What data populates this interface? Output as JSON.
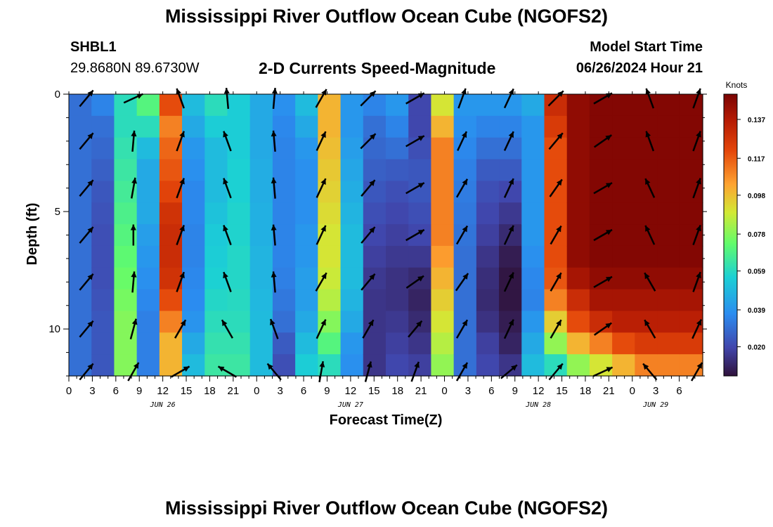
{
  "header": {
    "title": "Mississippi River Outflow Ocean Cube (NGOFS2)",
    "station_id": "SHBL1",
    "station_coords": "29.8680N  89.6730W",
    "plot_subtitle": "2-D Currents Speed-Magnitude",
    "model_label": "Model Start Time",
    "model_time": "06/26/2024 Hour 21"
  },
  "footer": {
    "title": "Mississippi River Outflow Ocean Cube (NGOFS2)"
  },
  "chart_data": {
    "type": "heatmap",
    "title": "2-D Currents Speed-Magnitude",
    "xlabel": "Forecast Time(Z)",
    "ylabel": "Depth (ft)",
    "xlim": [
      0,
      81
    ],
    "ylim": [
      12,
      0
    ],
    "x_tick_labels": [
      "0",
      "3",
      "6",
      "9",
      "12",
      "15",
      "18",
      "21",
      "0",
      "3",
      "6",
      "9",
      "12",
      "15",
      "18",
      "21",
      "0",
      "3",
      "6",
      "9",
      "12",
      "15",
      "18",
      "21",
      "0",
      "3",
      "6"
    ],
    "y_tick_labels": [
      "0",
      "5",
      "10"
    ],
    "date_labels": [
      {
        "hour": 12,
        "label": "JUN 26"
      },
      {
        "hour": 36,
        "label": "JUN 27"
      },
      {
        "hour": 60,
        "label": "JUN 28"
      },
      {
        "hour": 75,
        "label": "JUN 29"
      }
    ],
    "colorbar": {
      "unit": "Knots",
      "min": 0.005,
      "max": 0.15,
      "tick_labels": [
        "0.137",
        "0.117",
        "0.098",
        "0.078",
        "0.059",
        "0.039",
        "0.020"
      ]
    },
    "depths": [
      0,
      1,
      2,
      3,
      4,
      5,
      6,
      7,
      8,
      9,
      10,
      11,
      12
    ],
    "hours": [
      0,
      3,
      6,
      9,
      12,
      15,
      18,
      21,
      24,
      27,
      30,
      33,
      36,
      39,
      42,
      45,
      48,
      51,
      54,
      57,
      60,
      63,
      66,
      69,
      72,
      75,
      78,
      81
    ],
    "speed_grid": [
      [
        0.03,
        0.03,
        0.03,
        0.03,
        0.03,
        0.03,
        0.03,
        0.03,
        0.03,
        0.03,
        0.03,
        0.03,
        0.03
      ],
      [
        0.035,
        0.03,
        0.028,
        0.026,
        0.024,
        0.023,
        0.022,
        0.022,
        0.022,
        0.023,
        0.024,
        0.024,
        0.024
      ],
      [
        0.06,
        0.06,
        0.062,
        0.064,
        0.066,
        0.068,
        0.07,
        0.072,
        0.074,
        0.076,
        0.078,
        0.078,
        0.078
      ],
      [
        0.07,
        0.06,
        0.05,
        0.045,
        0.045,
        0.045,
        0.042,
        0.04,
        0.038,
        0.036,
        0.034,
        0.034,
        0.034
      ],
      [
        0.12,
        0.11,
        0.115,
        0.118,
        0.122,
        0.128,
        0.13,
        0.13,
        0.128,
        0.12,
        0.11,
        0.1,
        0.1
      ],
      [
        0.05,
        0.045,
        0.04,
        0.038,
        0.036,
        0.036,
        0.035,
        0.035,
        0.036,
        0.037,
        0.039,
        0.045,
        0.05
      ],
      [
        0.06,
        0.055,
        0.05,
        0.05,
        0.05,
        0.052,
        0.054,
        0.055,
        0.056,
        0.058,
        0.06,
        0.062,
        0.064
      ],
      [
        0.055,
        0.055,
        0.055,
        0.056,
        0.056,
        0.057,
        0.057,
        0.058,
        0.058,
        0.059,
        0.06,
        0.062,
        0.064
      ],
      [
        0.045,
        0.045,
        0.045,
        0.046,
        0.046,
        0.047,
        0.047,
        0.048,
        0.048,
        0.049,
        0.05,
        0.05,
        0.05
      ],
      [
        0.038,
        0.036,
        0.035,
        0.035,
        0.035,
        0.035,
        0.035,
        0.035,
        0.034,
        0.032,
        0.03,
        0.025,
        0.022
      ],
      [
        0.05,
        0.045,
        0.04,
        0.038,
        0.038,
        0.038,
        0.04,
        0.04,
        0.042,
        0.042,
        0.045,
        0.05,
        0.055
      ],
      [
        0.1,
        0.1,
        0.098,
        0.096,
        0.094,
        0.092,
        0.09,
        0.09,
        0.088,
        0.085,
        0.078,
        0.07,
        0.06
      ],
      [
        0.04,
        0.04,
        0.042,
        0.044,
        0.046,
        0.048,
        0.05,
        0.05,
        0.05,
        0.048,
        0.045,
        0.04,
        0.038
      ],
      [
        0.035,
        0.03,
        0.028,
        0.026,
        0.024,
        0.022,
        0.02,
        0.018,
        0.016,
        0.015,
        0.015,
        0.015,
        0.015
      ],
      [
        0.04,
        0.035,
        0.03,
        0.025,
        0.022,
        0.02,
        0.018,
        0.016,
        0.014,
        0.014,
        0.016,
        0.018,
        0.02
      ],
      [
        0.02,
        0.02,
        0.022,
        0.024,
        0.024,
        0.022,
        0.02,
        0.016,
        0.012,
        0.01,
        0.012,
        0.015,
        0.018
      ],
      [
        0.09,
        0.1,
        0.11,
        0.11,
        0.11,
        0.11,
        0.11,
        0.105,
        0.1,
        0.095,
        0.09,
        0.085,
        0.08
      ],
      [
        0.04,
        0.038,
        0.036,
        0.034,
        0.033,
        0.032,
        0.031,
        0.03,
        0.03,
        0.03,
        0.03,
        0.03,
        0.03
      ],
      [
        0.04,
        0.035,
        0.03,
        0.025,
        0.022,
        0.02,
        0.018,
        0.015,
        0.013,
        0.012,
        0.014,
        0.018,
        0.02
      ],
      [
        0.04,
        0.035,
        0.03,
        0.025,
        0.02,
        0.016,
        0.012,
        0.008,
        0.006,
        0.006,
        0.008,
        0.01,
        0.015
      ],
      [
        0.045,
        0.04,
        0.04,
        0.04,
        0.04,
        0.04,
        0.04,
        0.038,
        0.036,
        0.035,
        0.04,
        0.045,
        0.05
      ],
      [
        0.13,
        0.125,
        0.12,
        0.12,
        0.12,
        0.12,
        0.12,
        0.12,
        0.118,
        0.11,
        0.095,
        0.08,
        0.06
      ],
      [
        0.145,
        0.145,
        0.145,
        0.145,
        0.145,
        0.145,
        0.145,
        0.145,
        0.14,
        0.13,
        0.12,
        0.1,
        0.08
      ],
      [
        0.148,
        0.148,
        0.148,
        0.148,
        0.148,
        0.148,
        0.148,
        0.148,
        0.145,
        0.14,
        0.13,
        0.11,
        0.09
      ],
      [
        0.148,
        0.148,
        0.148,
        0.148,
        0.148,
        0.148,
        0.148,
        0.148,
        0.145,
        0.14,
        0.135,
        0.12,
        0.1
      ],
      [
        0.148,
        0.148,
        0.148,
        0.148,
        0.148,
        0.148,
        0.148,
        0.148,
        0.145,
        0.14,
        0.135,
        0.125,
        0.11
      ],
      [
        0.148,
        0.148,
        0.148,
        0.148,
        0.148,
        0.148,
        0.148,
        0.148,
        0.145,
        0.14,
        0.135,
        0.125,
        0.11
      ],
      [
        0.148,
        0.148,
        0.148,
        0.148,
        0.148,
        0.148,
        0.148,
        0.148,
        0.145,
        0.14,
        0.135,
        0.125,
        0.11
      ]
    ],
    "arrow_depths": [
      0,
      2,
      4,
      6,
      8,
      10,
      12
    ],
    "arrow_hours": [
      0,
      6,
      12,
      18,
      24,
      30,
      36,
      42,
      48,
      54,
      60,
      66,
      72,
      78
    ],
    "arrow_directions_deg": [
      [
        40,
        65,
        340,
        355,
        5,
        30,
        45,
        60,
        20,
        25,
        45,
        60,
        340,
        20
      ],
      [
        40,
        5,
        20,
        340,
        355,
        25,
        45,
        60,
        25,
        25,
        40,
        55,
        340,
        20
      ],
      [
        40,
        10,
        20,
        340,
        355,
        25,
        40,
        60,
        30,
        25,
        35,
        60,
        335,
        20
      ],
      [
        40,
        0,
        20,
        340,
        355,
        25,
        40,
        60,
        30,
        25,
        30,
        60,
        335,
        20
      ],
      [
        40,
        5,
        20,
        340,
        355,
        30,
        40,
        55,
        35,
        25,
        30,
        60,
        330,
        20
      ],
      [
        40,
        15,
        30,
        330,
        340,
        25,
        30,
        40,
        30,
        25,
        30,
        55,
        330,
        25
      ],
      [
        40,
        30,
        60,
        300,
        320,
        10,
        15,
        20,
        30,
        50,
        40,
        65,
        320,
        30
      ]
    ]
  }
}
